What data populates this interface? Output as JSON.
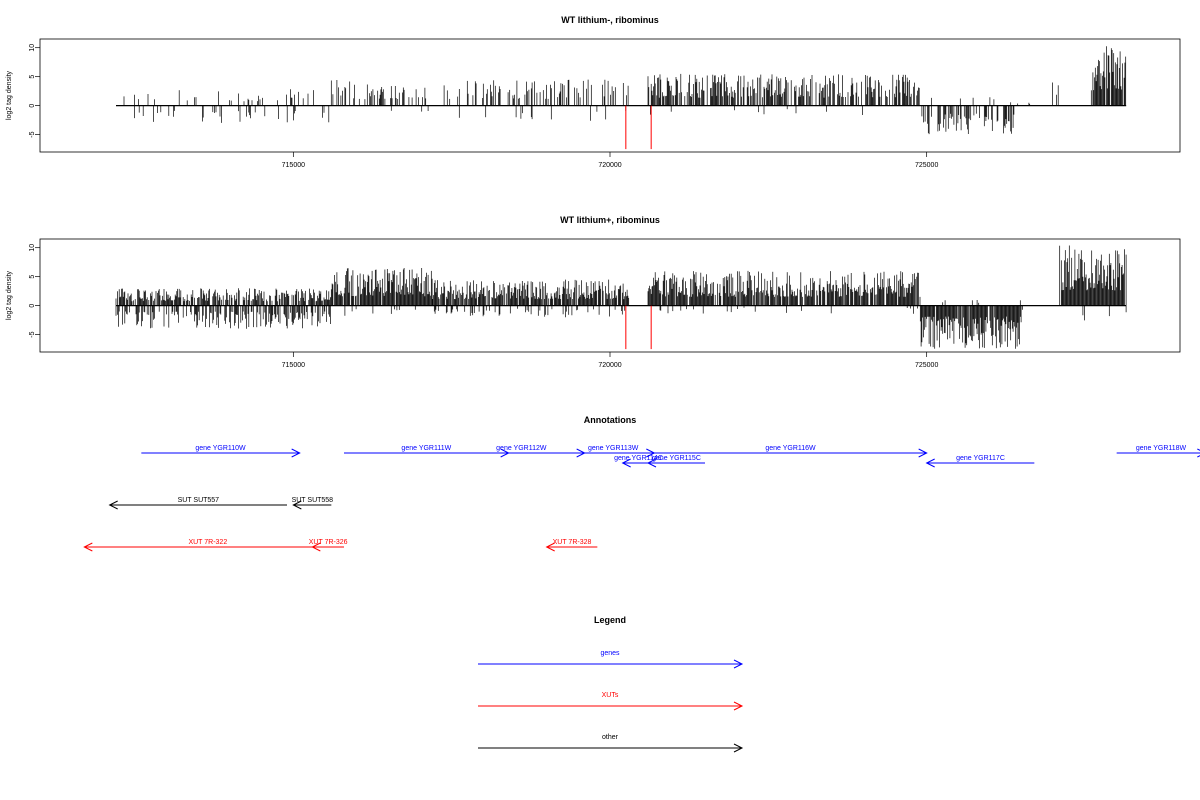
{
  "chart_data": [
    {
      "type": "bar",
      "title": "WT lithium-, ribominus",
      "ylabel": "log2 tag density",
      "xlim": [
        711000,
        729000
      ],
      "ylim": [
        -8,
        11.5
      ],
      "x_ticks": [
        715000,
        720000,
        725000
      ],
      "x_tick_labels": [
        "715000",
        "720000",
        "725000"
      ],
      "y_ticks": [
        -5,
        0,
        5,
        10
      ],
      "y_tick_labels": [
        "-5",
        "0",
        "5",
        "10"
      ],
      "data_range": [
        712200,
        727150
      ],
      "density_profile": [
        {
          "x0": 712200,
          "x1": 715600,
          "pos_frac": 0.12,
          "pos_max": 3,
          "neg_frac": 0.12,
          "neg_max": 3
        },
        {
          "x0": 715600,
          "x1": 720300,
          "pos_frac": 0.32,
          "pos_max": 4.5,
          "neg_frac": 0.03,
          "neg_max": 3.5
        },
        {
          "x0": 720600,
          "x1": 724900,
          "pos_frac": 0.65,
          "pos_max": 5.5,
          "neg_frac": 0.02,
          "neg_max": 2
        },
        {
          "x0": 724900,
          "x1": 726400,
          "pos_frac": 0.05,
          "pos_max": 1.5,
          "neg_frac": 0.55,
          "neg_max": 5
        },
        {
          "x0": 726400,
          "x1": 726950,
          "pos_frac": 0.02,
          "pos_max": 1,
          "neg_frac": 0.0,
          "neg_max": 0
        },
        {
          "x0": 726950,
          "x1": 727150,
          "pos_frac": 0.4,
          "pos_max": 6,
          "neg_frac": 0.0,
          "neg_max": 0
        },
        {
          "x0": 727600,
          "x1": 728150,
          "pos_frac": 0.95,
          "pos_max": 10.5,
          "neg_frac": 0.0,
          "neg_max": 0
        }
      ],
      "red_markers": [
        {
          "x": 720250,
          "ymin": -7.5,
          "ymax": 0
        },
        {
          "x": 720650,
          "ymin": -7.5,
          "ymax": 0
        }
      ],
      "marker_color": "#ff0000",
      "bar_color": "#000000"
    },
    {
      "type": "bar",
      "title": "WT lithium+, ribominus",
      "ylabel": "log2 tag density",
      "xlim": [
        711000,
        729000
      ],
      "ylim": [
        -8,
        11.5
      ],
      "x_ticks": [
        715000,
        720000,
        725000
      ],
      "x_tick_labels": [
        "715000",
        "720000",
        "725000"
      ],
      "y_ticks": [
        -5,
        0,
        5,
        10
      ],
      "y_tick_labels": [
        "-5",
        "0",
        "5",
        "10"
      ],
      "density_profile": [
        {
          "x0": 712200,
          "x1": 715600,
          "pos_frac": 0.7,
          "pos_max": 3,
          "neg_frac": 0.55,
          "neg_max": 4
        },
        {
          "x0": 715600,
          "x1": 717200,
          "pos_frac": 0.95,
          "pos_max": 6.5,
          "neg_frac": 0.05,
          "neg_max": 2
        },
        {
          "x0": 717200,
          "x1": 720300,
          "pos_frac": 0.85,
          "pos_max": 4.5,
          "neg_frac": 0.2,
          "neg_max": 2
        },
        {
          "x0": 720600,
          "x1": 724900,
          "pos_frac": 0.9,
          "pos_max": 6,
          "neg_frac": 0.05,
          "neg_max": 1.5
        },
        {
          "x0": 724900,
          "x1": 726500,
          "pos_frac": 0.05,
          "pos_max": 1,
          "neg_frac": 0.95,
          "neg_max": 7.5
        },
        {
          "x0": 726500,
          "x1": 727100,
          "pos_frac": 0.03,
          "pos_max": 1,
          "neg_frac": 0.02,
          "neg_max": 1
        },
        {
          "x0": 727100,
          "x1": 728150,
          "pos_frac": 0.95,
          "pos_max": 10.5,
          "neg_frac": 0.05,
          "neg_max": 4
        }
      ],
      "red_markers": [
        {
          "x": 720250,
          "ymin": -7.5,
          "ymax": 0
        },
        {
          "x": 720650,
          "ymin": -7.5,
          "ymax": 0
        }
      ],
      "marker_color": "#ff0000",
      "bar_color": "#000000"
    }
  ],
  "annotations": {
    "title": "Annotations",
    "genes": [
      {
        "label": "gene YGR110W",
        "start": 712600,
        "end": 715100,
        "row": 0,
        "strand": "+"
      },
      {
        "label": "gene YGR111W",
        "start": 715800,
        "end": 718400,
        "row": 0,
        "strand": "+"
      },
      {
        "label": "gene YGR112W",
        "start": 717600,
        "end": 719600,
        "row": 0,
        "strand": "+"
      },
      {
        "label": "gene YGR113W",
        "start": 719400,
        "end": 720700,
        "row": 0,
        "strand": "+"
      },
      {
        "label": "gene YGR116W",
        "start": 720700,
        "end": 725000,
        "row": 0,
        "strand": "+"
      },
      {
        "label": "gene YGR118W",
        "start": 728000,
        "end": 729400,
        "row": 0,
        "strand": "+"
      },
      {
        "label": "gene YGR114C",
        "start": 720200,
        "end": 720700,
        "row": 1,
        "strand": "-"
      },
      {
        "label": "gene YGR115C",
        "start": 720600,
        "end": 721500,
        "row": 1,
        "strand": "-"
      },
      {
        "label": "gene YGR117C",
        "start": 725000,
        "end": 726700,
        "row": 1,
        "strand": "-"
      }
    ],
    "other": [
      {
        "label": "SUT SUT557",
        "start": 712100,
        "end": 714900,
        "strand": "-"
      },
      {
        "label": "SUT SUT558",
        "start": 715000,
        "end": 715600,
        "strand": "-"
      }
    ],
    "xuts": [
      {
        "label": "XUT 7R-322",
        "start": 711700,
        "end": 715600,
        "strand": "-"
      },
      {
        "label": "XUT 7R-326",
        "start": 715300,
        "end": 715800,
        "strand": "-"
      },
      {
        "label": "XUT 7R-328",
        "start": 719000,
        "end": 719800,
        "strand": "-"
      }
    ],
    "colors": {
      "genes": "#0000ff",
      "xuts": "#ff0000",
      "other": "#000000"
    }
  },
  "legend": {
    "title": "Legend",
    "items": [
      {
        "label": "genes",
        "color": "#0000ff"
      },
      {
        "label": "XUTs",
        "color": "#ff0000"
      },
      {
        "label": "other",
        "color": "#000000"
      }
    ]
  }
}
